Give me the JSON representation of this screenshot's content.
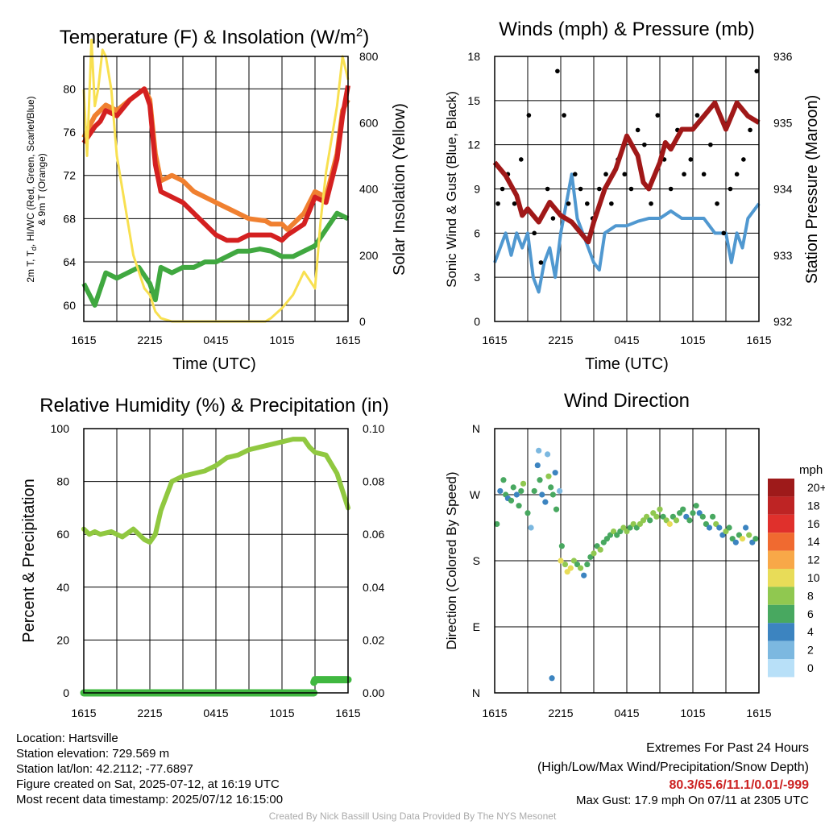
{
  "x_tick_labels": [
    "1615",
    "2215",
    "0415",
    "1015",
    "1615"
  ],
  "chart_data": [
    {
      "type": "line",
      "title": "Temperature (F) & Insolation (W/m²)",
      "title_main": "Temperature (F) & Insolation (W/m",
      "title_sup": "2",
      "title_end": ")",
      "xlabel": "Time (UTC)",
      "ylabel_lines": [
        "2m T, T",
        "d",
        ", HI/WC (Red, Green, Scarlet/Blue)",
        "& 9m T (Orange)"
      ],
      "y2label": "Solar Insolation (Yellow)",
      "x_hours": [
        0,
        6,
        12,
        18,
        24
      ],
      "ylim": [
        58.5,
        83.0
      ],
      "yticks": [
        60,
        64,
        68,
        72,
        76,
        80
      ],
      "y2lim": [
        0,
        800
      ],
      "y2ticks": [
        0,
        200,
        400,
        600,
        800
      ],
      "series": [
        {
          "color": "#f08030",
          "x": [
            0,
            1,
            1.5,
            2,
            3,
            4.2,
            5.5,
            6,
            6.5,
            7,
            8,
            9,
            10,
            11,
            12,
            13,
            14,
            15,
            16.5,
            17,
            18,
            18.5,
            20,
            21,
            22,
            23,
            23.5,
            24
          ],
          "values": [
            75.5,
            77.5,
            78,
            78.5,
            78,
            79,
            80,
            79,
            74,
            71.5,
            72,
            71.5,
            70.5,
            70,
            69.5,
            69,
            68.5,
            68,
            67.8,
            67.5,
            67.5,
            67,
            68.5,
            70.5,
            70,
            74,
            78,
            79
          ]
        },
        {
          "color": "#d42020",
          "x": [
            0,
            1,
            1.5,
            2,
            3,
            4.2,
            5.5,
            6,
            6.5,
            7,
            8,
            9,
            10,
            11,
            12,
            13,
            14,
            15,
            16.5,
            17,
            18,
            18.5,
            20,
            21,
            22,
            23,
            23.5,
            24
          ],
          "values": [
            75,
            76.5,
            77,
            78,
            77.5,
            79,
            80,
            78.5,
            73,
            70.5,
            70,
            69.5,
            68.5,
            67.5,
            66.5,
            66,
            66,
            66.5,
            66.5,
            66.5,
            66,
            66.5,
            67.5,
            70,
            69.5,
            73.5,
            77.5,
            80.3
          ]
        },
        {
          "color": "#40a840",
          "x": [
            0,
            0.5,
            1,
            1.5,
            2,
            3,
            4,
            5,
            6,
            6.5,
            7,
            8,
            9,
            10,
            11,
            12,
            13,
            14,
            15,
            16,
            17,
            18,
            19,
            20,
            21,
            22,
            23,
            24
          ],
          "values": [
            62,
            61,
            60,
            61.5,
            63,
            62.5,
            63,
            63.5,
            62,
            60.5,
            63.5,
            63,
            63.5,
            63.5,
            64,
            64,
            64.5,
            65,
            65,
            65.2,
            65,
            64.5,
            64.5,
            65,
            65.5,
            67,
            68.5,
            68
          ]
        },
        {
          "color": "#f8e050",
          "x": [
            0,
            0.3,
            0.7,
            1,
            1.3,
            1.7,
            2,
            2.5,
            3,
            3.5,
            4,
            4.5,
            5,
            5.5,
            6,
            6.5,
            7,
            8,
            9,
            10,
            11,
            12,
            13,
            14,
            15,
            16,
            16.5,
            17,
            18,
            19,
            20,
            21,
            21.5,
            22,
            22.5,
            23,
            23.5,
            24
          ],
          "values": [
            700,
            500,
            850,
            650,
            700,
            820,
            800,
            700,
            500,
            400,
            300,
            200,
            150,
            100,
            80,
            30,
            10,
            0,
            0,
            0,
            0,
            0,
            0,
            0,
            0,
            0,
            0,
            10,
            40,
            80,
            150,
            100,
            300,
            450,
            550,
            650,
            800,
            730
          ],
          "axis": "right"
        }
      ]
    },
    {
      "type": "line",
      "title": "Winds (mph) & Pressure (mb)",
      "xlabel": "Time (UTC)",
      "ylabel": "Sonic Wind & Gust (Blue, Black)",
      "y2label": "Station Pressure (Maroon)",
      "x_hours": [
        0,
        6,
        12,
        18,
        24
      ],
      "ylim": [
        0,
        18
      ],
      "yticks": [
        0,
        3,
        6,
        9,
        12,
        15,
        18
      ],
      "y2lim": [
        932,
        936
      ],
      "y2ticks": [
        932,
        933,
        934,
        935,
        936
      ],
      "series": [
        {
          "color": "#5098d0",
          "x": [
            0,
            0.5,
            1,
            1.5,
            2,
            2.5,
            3,
            3.5,
            4,
            4.5,
            5,
            5.5,
            6,
            6.5,
            7,
            7.5,
            8,
            8.5,
            9,
            9.5,
            10,
            11,
            12,
            13,
            14,
            15,
            16,
            17,
            18,
            19,
            20,
            21,
            21.5,
            22,
            22.5,
            23,
            24
          ],
          "values": [
            4,
            5,
            6,
            4.5,
            6,
            5,
            6,
            3,
            2,
            4,
            5,
            3,
            6,
            8,
            10,
            7,
            6,
            5,
            4,
            3.5,
            6,
            6.5,
            6.5,
            6.8,
            7,
            7,
            7.5,
            7,
            7,
            7,
            6,
            6,
            4,
            6,
            5,
            7,
            8
          ]
        },
        {
          "color": "#000000",
          "x": [
            0.3,
            0.7,
            1.2,
            1.8,
            2.4,
            3.1,
            3.6,
            4.2,
            4.8,
            5.3,
            5.7,
            6.3,
            6.7,
            7.3,
            7.8,
            8.4,
            8.9,
            9.5,
            10.1,
            10.6,
            11.2,
            11.8,
            12.4,
            13,
            13.6,
            14.2,
            14.8,
            15.4,
            16,
            16.6,
            17.2,
            17.8,
            18.4,
            19,
            19.6,
            20.2,
            20.8,
            21.4,
            22,
            22.6,
            23.2,
            23.8
          ],
          "values": [
            8,
            9,
            10,
            8,
            11,
            14,
            6,
            4,
            9,
            7,
            17,
            14,
            8,
            10,
            9,
            8,
            7,
            9,
            10,
            8,
            11,
            10,
            9,
            13,
            12,
            8,
            14,
            11,
            9,
            13,
            10,
            11,
            14,
            10,
            12,
            8,
            6,
            9,
            10,
            11,
            13,
            17
          ]
        },
        {
          "color": "#a01818",
          "x": [
            0,
            1,
            2,
            2.5,
            3,
            4,
            5,
            6,
            7,
            8,
            8.5,
            9,
            10,
            11,
            12,
            13,
            13.5,
            14,
            15,
            15.5,
            16,
            17,
            18,
            19,
            20,
            20.5,
            21,
            22,
            23,
            24
          ],
          "values": [
            934.4,
            934.2,
            933.9,
            933.6,
            933.7,
            933.5,
            933.8,
            933.6,
            933.5,
            933.3,
            933.2,
            933.5,
            934,
            934.3,
            934.8,
            934.5,
            934.1,
            934,
            934.4,
            934.7,
            934.6,
            934.9,
            934.9,
            935.1,
            935.3,
            935.1,
            934.9,
            935.3,
            935.1,
            935
          ]
        },
        {
          "color": "#000000",
          "x": [],
          "values": [],
          "axis": "right"
        }
      ]
    },
    {
      "type": "line",
      "title": "Relative Humidity (%) & Precipitation (in)",
      "xlabel": "",
      "ylabel": "Percent & Precipitation",
      "x_hours": [
        0,
        6,
        12,
        18,
        24
      ],
      "ylim": [
        0,
        100
      ],
      "yticks": [
        0,
        20,
        40,
        60,
        80,
        100
      ],
      "y2lim": [
        0,
        0.1
      ],
      "y2ticks": [
        "0.00",
        "0.02",
        "0.04",
        "0.06",
        "0.08",
        "0.10"
      ],
      "series": [
        {
          "color": "#90c840",
          "x": [
            0,
            0.5,
            1,
            1.5,
            2,
            2.5,
            3,
            3.5,
            4,
            4.5,
            5,
            5.5,
            6,
            6.5,
            7,
            8,
            9,
            10,
            11,
            12,
            13,
            14,
            15,
            16,
            17,
            18,
            19,
            20,
            20.5,
            21,
            22,
            23,
            24
          ],
          "values": [
            62,
            60,
            61,
            60,
            60.5,
            61,
            60,
            59,
            60.5,
            62,
            60,
            58,
            57,
            60,
            69,
            80,
            82,
            83,
            84,
            86,
            89,
            90,
            92,
            93,
            94,
            95,
            96,
            96,
            93,
            91,
            90,
            83,
            70
          ]
        },
        {
          "color": "#40b840",
          "x": [
            0,
            4,
            8,
            12,
            16,
            20,
            20.9
          ],
          "values": [
            0,
            0,
            0,
            0,
            0,
            0,
            0
          ]
        },
        {
          "color": "#40b840",
          "x": [
            20.9,
            21,
            22,
            23,
            24
          ],
          "values": [
            0.004,
            0.005,
            0.005,
            0.005,
            0.005
          ],
          "axis": "right"
        }
      ]
    },
    {
      "type": "scatter",
      "title": "Wind Direction",
      "ylabel": "Direction (Colored By Speed)",
      "x_hours": [
        0,
        6,
        12,
        18,
        24
      ],
      "ylim": [
        0,
        360
      ],
      "yticks": [
        "N",
        "E",
        "S",
        "W",
        "N"
      ],
      "legend_title": "mph",
      "legend_labels": [
        "20+",
        "18",
        "16",
        "14",
        "12",
        "10",
        "8",
        "6",
        "4",
        "2",
        "0"
      ],
      "legend_colors": [
        "#9e1a1a",
        "#be2424",
        "#e0302c",
        "#f06a30",
        "#f8a848",
        "#e8dc58",
        "#90c850",
        "#48a860",
        "#3c84c0",
        "#7cb8e0",
        "#b8e0f8"
      ],
      "points_x": [
        0.2,
        0.5,
        0.8,
        1,
        1.2,
        1.5,
        1.7,
        2,
        2.2,
        2.4,
        2.6,
        3,
        3.3,
        3.6,
        3.9,
        4.1,
        4.3,
        4.6,
        4.9,
        5.1,
        5.3,
        5.6,
        5.9,
        6.1,
        6.4,
        6.6,
        6.9,
        7.2,
        7.5,
        7.8,
        8.1,
        8.4,
        8.7,
        9,
        9.3,
        9.6,
        9.9,
        10.2,
        10.5,
        10.8,
        11.1,
        11.4,
        11.7,
        12,
        12.3,
        12.6,
        12.9,
        13.2,
        13.5,
        13.8,
        14.1,
        14.4,
        14.7,
        15,
        15.3,
        15.6,
        15.9,
        16.2,
        16.5,
        16.8,
        17.1,
        17.4,
        17.7,
        18,
        18.3,
        18.6,
        18.9,
        19.2,
        19.5,
        19.8,
        20.1,
        20.4,
        20.7,
        21,
        21.3,
        21.6,
        21.9,
        22.2,
        22.5,
        22.8,
        23.1,
        23.4,
        23.7,
        4.8,
        5.5,
        5.2,
        4,
        6
      ],
      "points_y": [
        230,
        275,
        290,
        270,
        265,
        262,
        280,
        270,
        255,
        275,
        285,
        245,
        225,
        275,
        310,
        290,
        270,
        260,
        295,
        280,
        270,
        250,
        275,
        200,
        175,
        165,
        170,
        180,
        175,
        170,
        160,
        175,
        185,
        190,
        200,
        195,
        205,
        210,
        215,
        220,
        215,
        220,
        225,
        220,
        225,
        230,
        225,
        230,
        235,
        240,
        235,
        245,
        240,
        250,
        240,
        235,
        230,
        240,
        235,
        245,
        250,
        240,
        235,
        245,
        255,
        245,
        240,
        230,
        225,
        240,
        230,
        225,
        215,
        220,
        225,
        210,
        205,
        215,
        210,
        225,
        215,
        205,
        210,
        325,
        300,
        20,
        330,
        180
      ],
      "points_speed": [
        5,
        4,
        5,
        6,
        3,
        5,
        6,
        4,
        6,
        5,
        7,
        5,
        2,
        5,
        3,
        6,
        4,
        3,
        7,
        5,
        6,
        5,
        2,
        6,
        7,
        10,
        9,
        7,
        5,
        7,
        4,
        6,
        6,
        7,
        5,
        7,
        6,
        6,
        5,
        7,
        6,
        6,
        7,
        8,
        6,
        7,
        6,
        8,
        7,
        7,
        6,
        7,
        8,
        7,
        6,
        8,
        9,
        6,
        7,
        5,
        6,
        4,
        5,
        6,
        5,
        4,
        6,
        5,
        3,
        5,
        7,
        4,
        3,
        8,
        6,
        5,
        4,
        6,
        9,
        4,
        7,
        3,
        6,
        2,
        3,
        4,
        2,
        9
      ]
    }
  ],
  "info": {
    "location": "Location: Hartsville",
    "elevation": "Station elevation: 729.569 m",
    "latlon": "Station lat/lon: 42.2112; -77.6897",
    "created": "Figure created on Sat, 2025-07-12, at 16:19 UTC",
    "recent": "Most recent data timestamp: 2025/07/12 16:15:00"
  },
  "extremes": {
    "heading": "Extremes For Past 24 Hours",
    "subheading": "(High/Low/Max Wind/Precipitation/Snow Depth)",
    "values": "80.3/65.6/11.1/0.01/-999",
    "max_gust": "Max Gust: 17.9 mph On 07/11 at 2305 UTC"
  },
  "credit": "Created By Nick Bassill Using Data Provided By The NYS Mesonet"
}
